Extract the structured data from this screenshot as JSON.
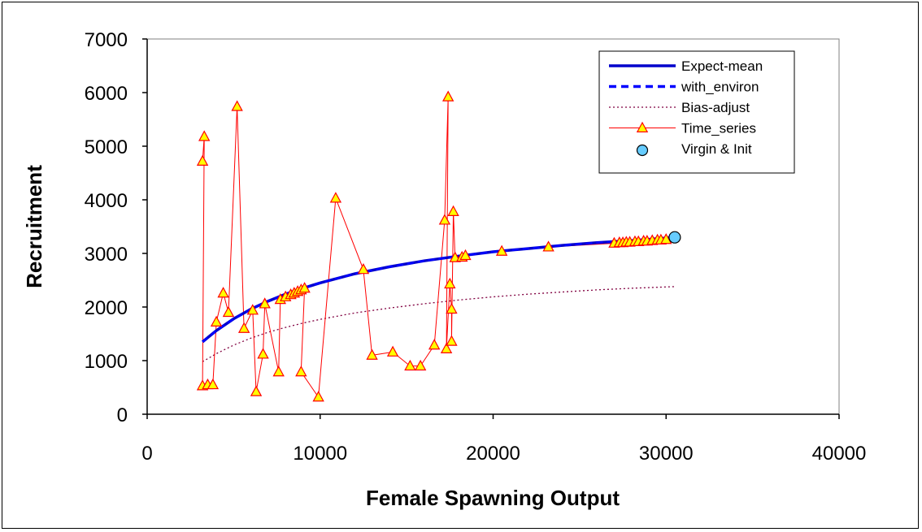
{
  "chart_data": {
    "type": "scatter",
    "title": "",
    "xlabel": "Female Spawning Output",
    "ylabel": "Recruitment",
    "xlim": [
      0,
      40000
    ],
    "ylim": [
      0,
      7000
    ],
    "x_ticks": [
      0,
      10000,
      20000,
      30000,
      40000
    ],
    "y_ticks": [
      0,
      1000,
      2000,
      3000,
      4000,
      5000,
      6000,
      7000
    ],
    "grid": false,
    "legend_position": "top-right",
    "colors": {
      "expect_mean": "#0000cc",
      "with_environ": "#0000ff",
      "bias_adjust": "#800040",
      "time_series_line": "#ff0000",
      "time_series_marker_fill": "#ffff00",
      "virgin_fill": "#66ccff"
    },
    "series": [
      {
        "name": "Expect-mean",
        "style": "solid",
        "x": [
          3200,
          4000,
          5000,
          6000,
          7000,
          8000,
          9000,
          10000,
          12000,
          14000,
          16000,
          18000,
          20000,
          22000,
          24000,
          26000,
          28000,
          30500
        ],
        "y": [
          1350,
          1560,
          1780,
          1960,
          2110,
          2240,
          2350,
          2450,
          2620,
          2750,
          2860,
          2950,
          3030,
          3090,
          3150,
          3200,
          3240,
          3300
        ]
      },
      {
        "name": "with_environ",
        "style": "dashed",
        "x": [
          3200,
          4000,
          5000,
          6000,
          7000,
          8000,
          9000,
          10000,
          12000,
          14000,
          16000,
          18000,
          20000,
          22000,
          24000,
          26000,
          28000,
          30500
        ],
        "y": [
          1350,
          1560,
          1780,
          1960,
          2110,
          2240,
          2350,
          2450,
          2620,
          2750,
          2860,
          2950,
          3030,
          3090,
          3150,
          3200,
          3240,
          3300
        ]
      },
      {
        "name": "Bias-adjust",
        "style": "dotted",
        "x": [
          3200,
          4000,
          5000,
          6000,
          7000,
          8000,
          9000,
          10000,
          12000,
          14000,
          16000,
          18000,
          20000,
          22000,
          24000,
          26000,
          28000,
          30500
        ],
        "y": [
          980,
          1130,
          1290,
          1420,
          1530,
          1620,
          1700,
          1770,
          1890,
          1980,
          2060,
          2130,
          2190,
          2240,
          2280,
          2320,
          2350,
          2380
        ]
      },
      {
        "name": "Time_series",
        "style": "line-markers",
        "x": [
          3200,
          3300,
          3200,
          3500,
          3800,
          4000,
          4400,
          4700,
          5200,
          5600,
          6100,
          6300,
          6700,
          6800,
          7600,
          7700,
          8000,
          8300,
          8500,
          8700,
          8900,
          9100,
          8900,
          9900,
          10900,
          12500,
          13000,
          14200,
          15200,
          15800,
          16600,
          17200,
          17400,
          17300,
          17500,
          17600,
          17600,
          17700,
          17800,
          18200,
          18400,
          20500,
          23200,
          27000,
          27300,
          27500,
          27700,
          27900,
          28200,
          28400,
          28700,
          28900,
          29200,
          29500,
          29700,
          30000
        ],
        "y": [
          4720,
          5180,
          530,
          550,
          550,
          1720,
          2260,
          1900,
          5740,
          1600,
          1940,
          420,
          1120,
          2060,
          790,
          2140,
          2190,
          2230,
          2260,
          2290,
          2320,
          2350,
          790,
          320,
          4030,
          2700,
          1100,
          1160,
          900,
          900,
          1290,
          3620,
          5920,
          1220,
          2430,
          1960,
          1360,
          3780,
          2920,
          2930,
          2960,
          3040,
          3120,
          3190,
          3200,
          3200,
          3210,
          3210,
          3220,
          3220,
          3230,
          3230,
          3240,
          3250,
          3250,
          3260
        ]
      },
      {
        "name": "Virgin & Init",
        "style": "marker",
        "x": [
          30500
        ],
        "y": [
          3300
        ]
      }
    ]
  }
}
